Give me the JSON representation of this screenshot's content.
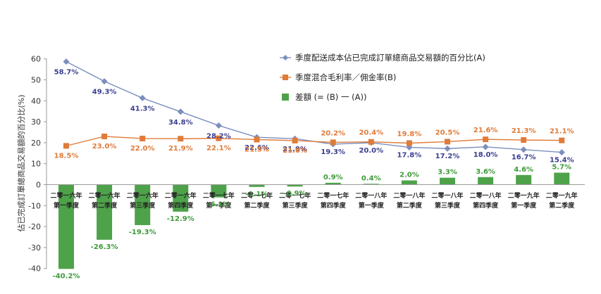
{
  "chart_data": {
    "type": "bar",
    "ylabel": "佔已完成訂單總商品交易額的百分比(%)",
    "ylim": [
      -40,
      60
    ],
    "yticks": [
      -40,
      -30,
      -20,
      -10,
      0,
      10,
      20,
      30,
      40,
      50,
      60
    ],
    "grid": false,
    "legend_position": "top-right",
    "categories": [
      [
        "二零一六年",
        "第一季度"
      ],
      [
        "二零一六年",
        "第二季度"
      ],
      [
        "二零一六年",
        "第三季度"
      ],
      [
        "二零一六年",
        "第四季度"
      ],
      [
        "二零一七年",
        "第一季度"
      ],
      [
        "二零一七年",
        "第二季度"
      ],
      [
        "二零一七年",
        "第三季度"
      ],
      [
        "二零一七年",
        "第四季度"
      ],
      [
        "二零一八年",
        "第一季度"
      ],
      [
        "二零一八年",
        "第二季度"
      ],
      [
        "二零一八年",
        "第三季度"
      ],
      [
        "二零一八年",
        "第四季度"
      ],
      [
        "二零一九年",
        "第一季度"
      ],
      [
        "二零一九年",
        "第二季度"
      ]
    ],
    "series": [
      {
        "name": "季度配送成本佔已完成訂單總商品交易額的百分比(A)",
        "type": "line",
        "color": "#7b8fbd",
        "label_color": "#3a3f8f",
        "marker": "diamond",
        "values": [
          58.7,
          49.3,
          41.3,
          34.8,
          28.2,
          22.6,
          21.9,
          19.3,
          20.0,
          17.8,
          17.2,
          18.0,
          16.7,
          15.4
        ],
        "labels": [
          "58.7%",
          "49.3%",
          "41.3%",
          "34.8%",
          "28.2%",
          "22.6%",
          "21.9%",
          "19.3%",
          "20.0%",
          "17.8%",
          "17.2%",
          "18.0%",
          "16.7%",
          "15.4%"
        ]
      },
      {
        "name": "季度混合毛利率／佣金率(B)",
        "type": "line",
        "color": "#e07b39",
        "label_color": "#e07b39",
        "marker": "square",
        "values": [
          18.5,
          23.0,
          22.0,
          21.9,
          22.1,
          21.5,
          21.0,
          20.2,
          20.4,
          19.8,
          20.5,
          21.6,
          21.3,
          21.1
        ],
        "labels": [
          "18.5%",
          "23.0%",
          "22.0%",
          "21.9%",
          "22.1%",
          "21.5%",
          "21.0%",
          "20.2%",
          "20.4%",
          "19.8%",
          "20.5%",
          "21.6%",
          "21.3%",
          "21.1%"
        ]
      },
      {
        "name": "差額 (= (B) 一 (A))",
        "type": "bar",
        "color": "#4ea24a",
        "label_color": "#3d9a3a",
        "values": [
          -40.2,
          -26.3,
          -19.3,
          -12.9,
          -6.1,
          -1.1,
          -0.9,
          0.9,
          0.4,
          2.0,
          3.3,
          3.6,
          4.6,
          5.7
        ],
        "labels": [
          "-40.2%",
          "-26.3%",
          "-19.3%",
          "-12.9%",
          "-6.1%",
          "-1.1%",
          "-0.9%",
          "0.9%",
          "0.4%",
          "2.0%",
          "3.3%",
          "3.6%",
          "4.6%",
          "5.7%"
        ]
      }
    ]
  }
}
